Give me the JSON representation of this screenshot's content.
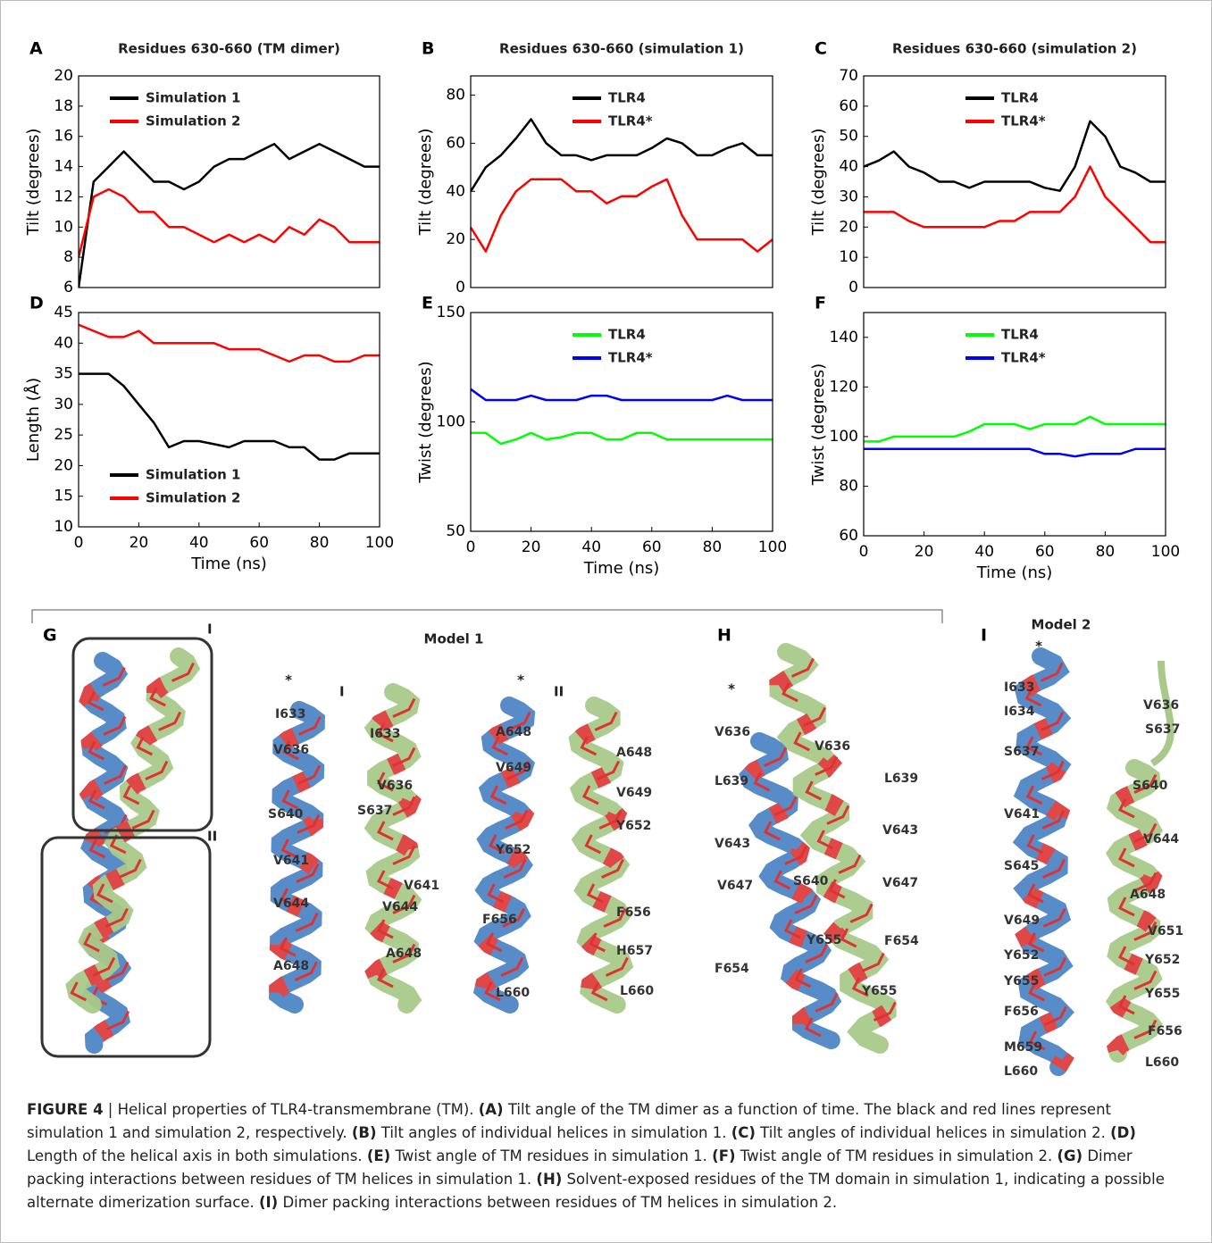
{
  "chart_data": [
    {
      "type": "line",
      "panel": "A",
      "title": "Residues 630-660 (TM dimer)",
      "ylabel": "Tilt (degrees)",
      "x": [
        0,
        5,
        10,
        15,
        20,
        25,
        30,
        35,
        40,
        45,
        50,
        55,
        60,
        65,
        70,
        75,
        80,
        85,
        90,
        95,
        100
      ],
      "series": [
        {
          "name": "Simulation 1",
          "color": "#000000",
          "values": [
            6,
            13,
            14,
            15,
            14,
            13,
            13,
            12.5,
            13,
            14,
            14.5,
            14.5,
            15,
            15.5,
            14.5,
            15,
            15.5,
            15,
            14.5,
            14,
            14
          ]
        },
        {
          "name": "Simulation 2",
          "color": "#ff0000",
          "values": [
            8,
            12,
            12.5,
            12,
            11,
            11,
            10,
            10,
            9.5,
            9,
            9.5,
            9,
            9.5,
            9,
            10,
            9.5,
            10.5,
            10,
            9,
            9,
            9
          ]
        }
      ],
      "xlim": [
        0,
        100
      ],
      "ylim": [
        6,
        20
      ],
      "yticks": [
        6,
        8,
        10,
        12,
        14,
        16,
        18,
        20
      ],
      "legend": "upper left"
    },
    {
      "type": "line",
      "panel": "B",
      "title": "Residues 630-660 (simulation 1)",
      "ylabel": "Tilt (degrees)",
      "x": [
        0,
        5,
        10,
        15,
        20,
        25,
        30,
        35,
        40,
        45,
        50,
        55,
        60,
        65,
        70,
        75,
        80,
        85,
        90,
        95,
        100
      ],
      "series": [
        {
          "name": "TLR4",
          "color": "#000000",
          "values": [
            40,
            50,
            55,
            62,
            70,
            60,
            55,
            55,
            53,
            55,
            55,
            55,
            58,
            62,
            60,
            55,
            55,
            58,
            60,
            55,
            55
          ]
        },
        {
          "name": "TLR4*",
          "color": "#ff0000",
          "values": [
            25,
            15,
            30,
            40,
            45,
            45,
            45,
            40,
            40,
            35,
            38,
            38,
            42,
            45,
            30,
            20,
            20,
            20,
            20,
            15,
            20
          ]
        }
      ],
      "xlim": [
        0,
        100
      ],
      "ylim": [
        0,
        88
      ],
      "yticks": [
        0,
        20,
        40,
        60,
        80
      ],
      "legend": "upper center"
    },
    {
      "type": "line",
      "panel": "C",
      "title": "Residues 630-660 (simulation 2)",
      "ylabel": "Tilt (degrees)",
      "x": [
        0,
        5,
        10,
        15,
        20,
        25,
        30,
        35,
        40,
        45,
        50,
        55,
        60,
        65,
        70,
        75,
        80,
        85,
        90,
        95,
        100
      ],
      "series": [
        {
          "name": "TLR4",
          "color": "#000000",
          "values": [
            40,
            42,
            45,
            40,
            38,
            35,
            35,
            33,
            35,
            35,
            35,
            35,
            33,
            32,
            40,
            55,
            50,
            40,
            38,
            35,
            35
          ]
        },
        {
          "name": "TLR4*",
          "color": "#ff0000",
          "values": [
            25,
            25,
            25,
            22,
            20,
            20,
            20,
            20,
            20,
            22,
            22,
            25,
            25,
            25,
            30,
            40,
            30,
            25,
            20,
            15,
            15
          ]
        }
      ],
      "xlim": [
        0,
        100
      ],
      "ylim": [
        0,
        70
      ],
      "yticks": [
        0,
        10,
        20,
        30,
        40,
        50,
        60,
        70
      ],
      "legend": "upper center"
    },
    {
      "type": "line",
      "panel": "D",
      "xlabel": "Time (ns)",
      "ylabel": "Length (Å)",
      "x": [
        0,
        5,
        10,
        15,
        20,
        25,
        30,
        35,
        40,
        45,
        50,
        55,
        60,
        65,
        70,
        75,
        80,
        85,
        90,
        95,
        100
      ],
      "series": [
        {
          "name": "Simulation 1",
          "color": "#000000",
          "values": [
            35,
            35,
            35,
            33,
            30,
            27,
            23,
            24,
            24,
            23.5,
            23,
            24,
            24,
            24,
            23,
            23,
            21,
            21,
            22,
            22,
            22
          ]
        },
        {
          "name": "Simulation 2",
          "color": "#ff0000",
          "values": [
            43,
            42,
            41,
            41,
            42,
            40,
            40,
            40,
            40,
            40,
            39,
            39,
            39,
            38,
            37,
            38,
            38,
            37,
            37,
            38,
            38
          ]
        }
      ],
      "xlim": [
        0,
        100
      ],
      "ylim": [
        10,
        45
      ],
      "xticks": [
        0,
        20,
        40,
        60,
        80,
        100
      ],
      "yticks": [
        10,
        15,
        20,
        25,
        30,
        35,
        40,
        45
      ],
      "legend": "lower left"
    },
    {
      "type": "line",
      "panel": "E",
      "xlabel": "Time (ns)",
      "ylabel": "Twist (degrees)",
      "x": [
        0,
        5,
        10,
        15,
        20,
        25,
        30,
        35,
        40,
        45,
        50,
        55,
        60,
        65,
        70,
        75,
        80,
        85,
        90,
        95,
        100
      ],
      "series": [
        {
          "name": "TLR4",
          "color": "#00ff00",
          "values": [
            95,
            95,
            90,
            92,
            95,
            92,
            93,
            95,
            95,
            92,
            92,
            95,
            95,
            92,
            92,
            92,
            92,
            92,
            92,
            92,
            92
          ]
        },
        {
          "name": "TLR4*",
          "color": "#0000ff",
          "values": [
            115,
            110,
            110,
            110,
            112,
            110,
            110,
            110,
            112,
            112,
            110,
            110,
            110,
            110,
            110,
            110,
            110,
            112,
            110,
            110,
            110
          ]
        }
      ],
      "xlim": [
        0,
        100
      ],
      "ylim": [
        50,
        150
      ],
      "xticks": [
        0,
        20,
        40,
        60,
        80,
        100
      ],
      "yticks": [
        50,
        100,
        150
      ],
      "legend": "upper center"
    },
    {
      "type": "line",
      "panel": "F",
      "xlabel": "Time (ns)",
      "ylabel": "Twist (degrees)",
      "x": [
        0,
        5,
        10,
        15,
        20,
        25,
        30,
        35,
        40,
        45,
        50,
        55,
        60,
        65,
        70,
        75,
        80,
        85,
        90,
        95,
        100
      ],
      "series": [
        {
          "name": "TLR4",
          "color": "#00ff00",
          "values": [
            98,
            98,
            100,
            100,
            100,
            100,
            100,
            102,
            105,
            105,
            105,
            103,
            105,
            105,
            105,
            108,
            105,
            105,
            105,
            105,
            105
          ]
        },
        {
          "name": "TLR4*",
          "color": "#0000ff",
          "values": [
            95,
            95,
            95,
            95,
            95,
            95,
            95,
            95,
            95,
            95,
            95,
            95,
            93,
            93,
            92,
            93,
            93,
            93,
            95,
            95,
            95
          ]
        }
      ],
      "xlim": [
        0,
        100
      ],
      "ylim": [
        60,
        150
      ],
      "xticks": [
        0,
        20,
        40,
        60,
        80,
        100
      ],
      "yticks": [
        60,
        80,
        100,
        120,
        140
      ],
      "legend": "upper center"
    }
  ],
  "structures": {
    "G": {
      "letter": "G",
      "title": "Model 1",
      "box_labels": [
        "I",
        "II"
      ],
      "views": [
        {
          "marker": "*",
          "label": "I",
          "residues": [
            "I633",
            "V636",
            "S640",
            "V641",
            "V644",
            "A648",
            "I633",
            "V636",
            "S637",
            "V641",
            "V644",
            "A648"
          ]
        },
        {
          "marker": "*",
          "label": "II",
          "residues": [
            "A648",
            "V649",
            "Y652",
            "F656",
            "L660",
            "A648",
            "V649",
            "Y652",
            "F656",
            "H657",
            "L660"
          ]
        }
      ]
    },
    "H": {
      "letter": "H",
      "marker": "*",
      "residues": [
        "V636",
        "L639",
        "V643",
        "V647",
        "F654",
        "S640",
        "Y655",
        "V636",
        "L639",
        "V643",
        "V647",
        "F654",
        "Y655"
      ]
    },
    "I": {
      "letter": "I",
      "title": "Model  2",
      "marker": "*",
      "residues": [
        "I633",
        "I634",
        "S637",
        "V641",
        "S645",
        "V649",
        "Y652",
        "Y655",
        "F656",
        "M659",
        "L660",
        "V636",
        "S637",
        "S640",
        "V644",
        "A648",
        "V651",
        "Y652",
        "Y655",
        "F656",
        "L660"
      ]
    }
  },
  "caption": [
    "FIGURE 4",
    " | Helical properties of TLR4-transmembrane (TM). ",
    "(A)",
    " Tilt angle of the TM dimer as a function of time. The black and red lines represent simulation 1 and simulation 2, respectively. ",
    "(B)",
    " Tilt angles of individual helices in simulation 1. ",
    "(C)",
    " Tilt angles of individual helices in simulation 2. ",
    "(D)",
    " Length of the helical axis in both simulations. ",
    "(E)",
    " Twist angle of TM residues in simulation 1. ",
    "(F)",
    " Twist angle of TM residues in simulation 2. ",
    "(G)",
    " Dimer packing interactions between residues of TM helices in simulation 1. ",
    "(H)",
    " Solvent-exposed residues of the TM domain in simulation 1, indicating a possible alternate dimerization surface. ",
    "(I)",
    " Dimer packing interactions between residues of TM helices in simulation 2."
  ]
}
